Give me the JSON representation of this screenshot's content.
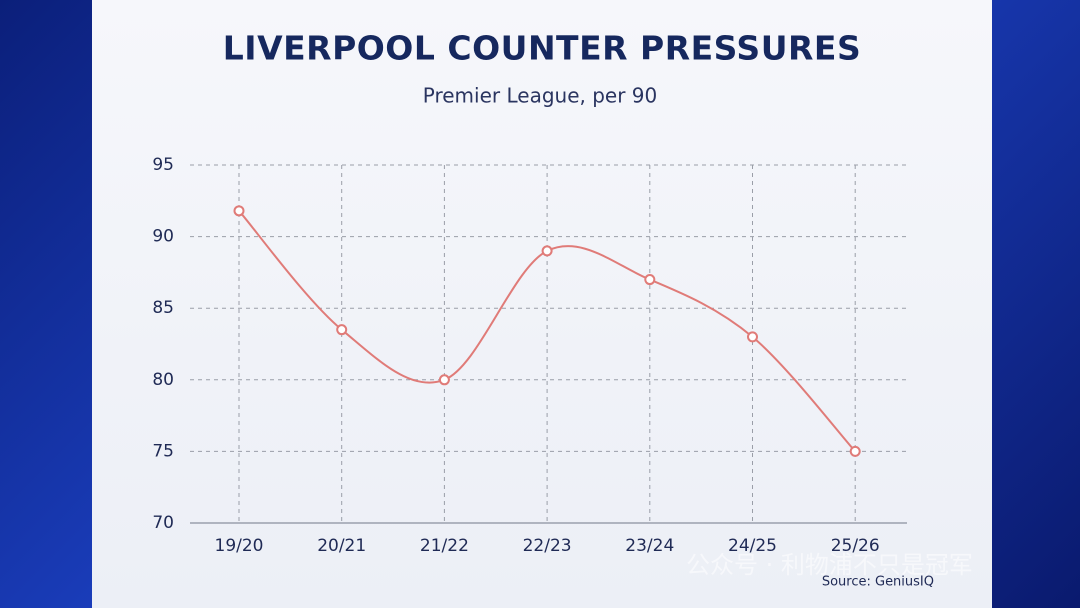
{
  "chart_data": {
    "type": "line",
    "title": "LIVERPOOL COUNTER PRESSURES",
    "subtitle": "Premier League, per 90",
    "categories": [
      "19/20",
      "20/21",
      "21/22",
      "22/23",
      "23/24",
      "24/25",
      "25/26"
    ],
    "values": [
      91.8,
      83.5,
      80,
      89,
      87,
      83,
      75
    ],
    "color": "#e07b78",
    "ylim": [
      70,
      95
    ],
    "yticks": [
      70,
      75,
      80,
      85,
      90,
      95
    ],
    "grid": true,
    "source": "Source: GeniusIQ",
    "watermark": "公众号 · 利物浦不只是冠军"
  }
}
